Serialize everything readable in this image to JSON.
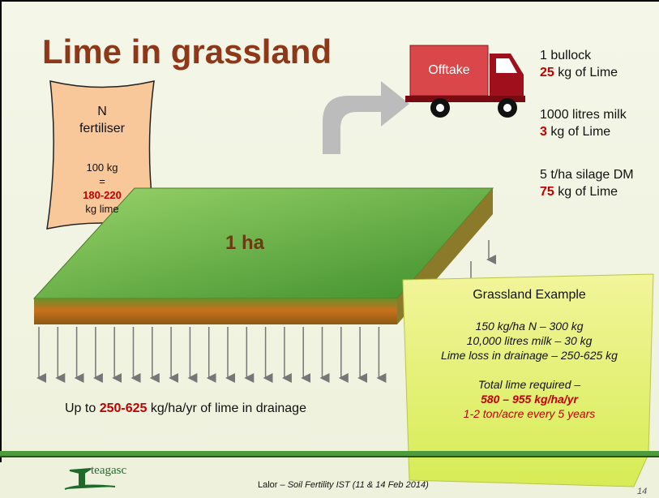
{
  "title": "Lime in grassland",
  "fertiliser_bag": {
    "lines": [
      "N",
      "fertiliser"
    ],
    "amount": "100 kg",
    "equals": "=",
    "lime": "180-220",
    "lime_unit": "kg lime"
  },
  "truck": {
    "label": "Offtake"
  },
  "offtake": [
    {
      "item": "1 bullock",
      "amount": "25",
      "unit": "kg of Lime"
    },
    {
      "item": "1000 litres milk",
      "amount": "3",
      "unit": "kg of Lime"
    },
    {
      "item": "5 t/ha silage DM",
      "amount": "75",
      "unit": "kg of Lime"
    }
  ],
  "field": {
    "label": "1 ha"
  },
  "drainage": {
    "prefix": "Up to",
    "amount": "250-625",
    "suffix": "kg/ha/yr of lime in drainage"
  },
  "example": {
    "title": "Grassland Example",
    "lines": [
      "150 kg/ha N – 300 kg",
      "10,000 litres milk – 30 kg",
      "Lime loss in drainage – 250-625 kg"
    ],
    "total_label": "Total lime required –",
    "total": "580 – 955 kg/ha/yr",
    "per_acre": "1-2 ton/acre every 5 years"
  },
  "footer": {
    "logo": "teagasc",
    "author": "Lalor –",
    "event": "Soil Fertility IST (11 & 14 Feb 2014)",
    "page": "14"
  }
}
